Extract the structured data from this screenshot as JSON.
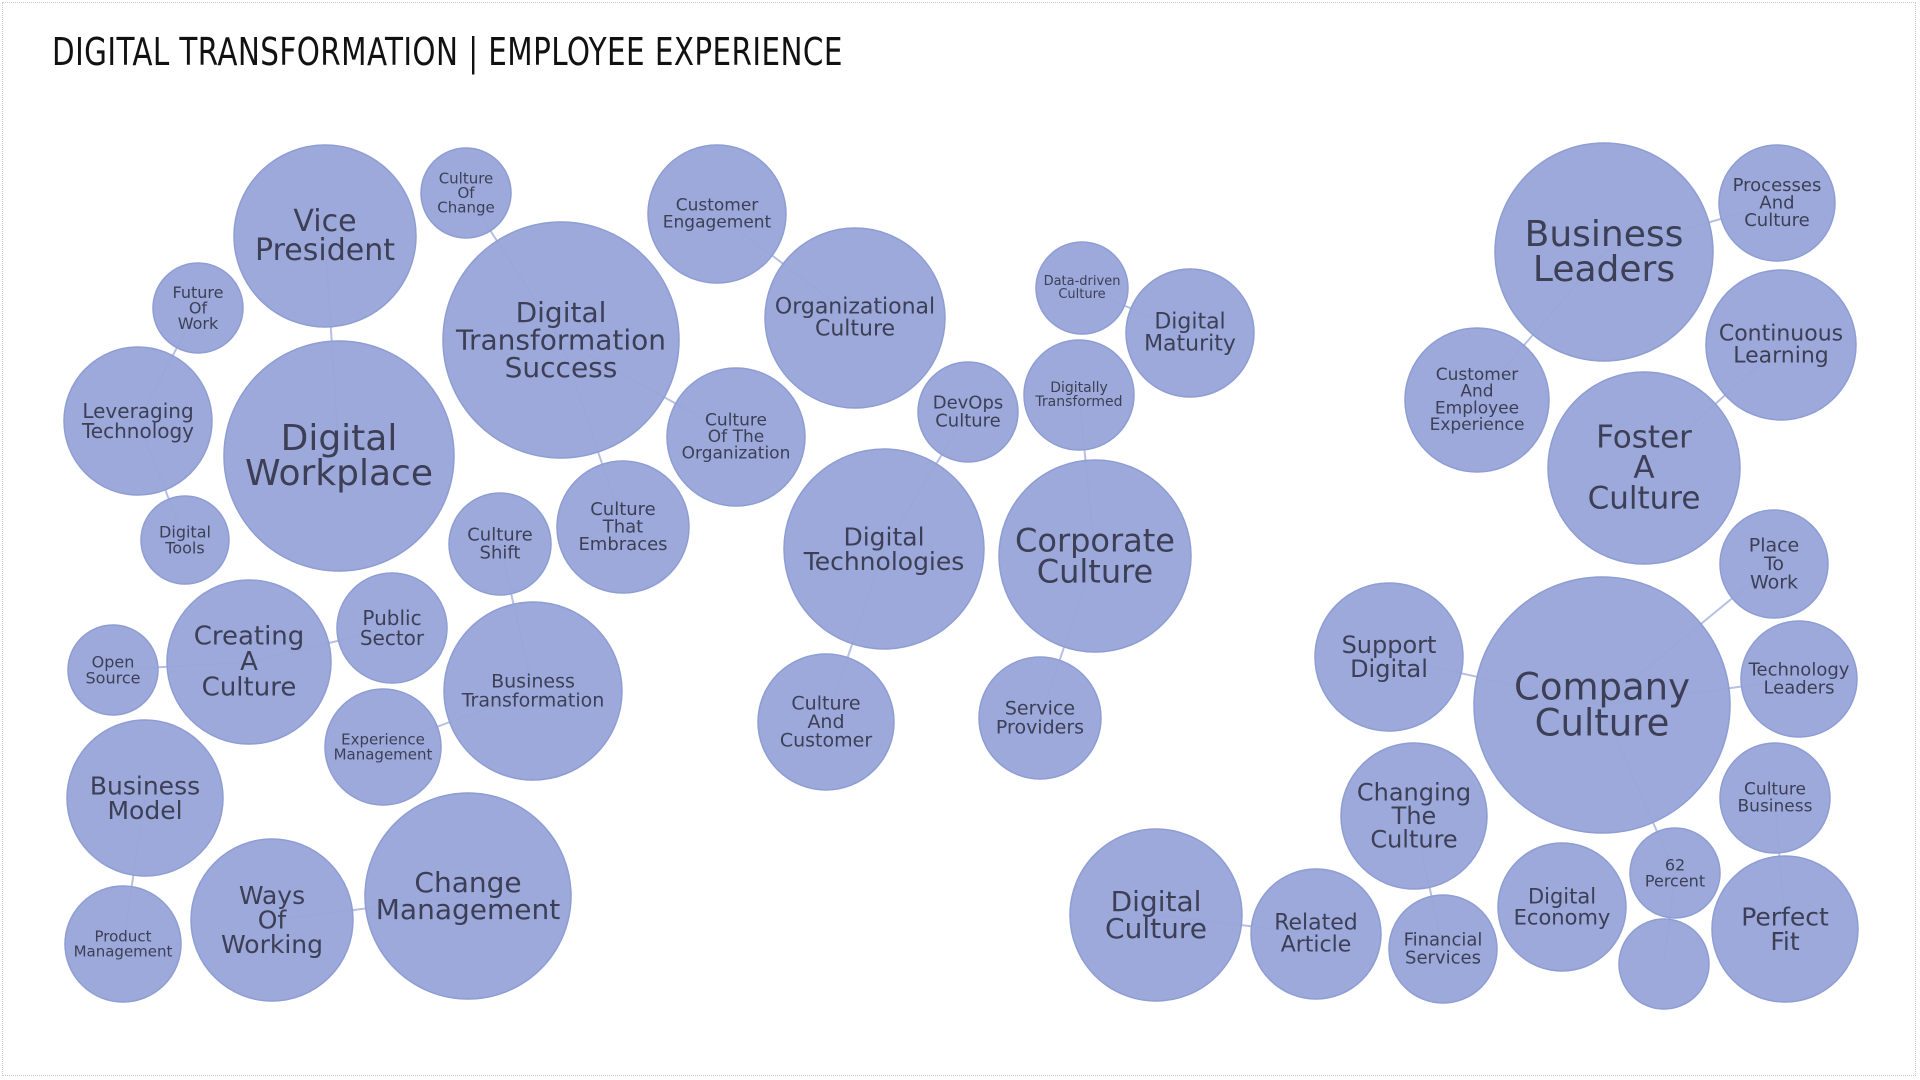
{
  "title": "DIGITAL TRANSFORMATION | EMPLOYEE EXPERIENCE",
  "colors": {
    "bubble": "#98a6d9",
    "bubble_stroke": "#8e9dd3",
    "link": "#b7c0e3",
    "label": "#3c3f55"
  },
  "bubbles": [
    {
      "id": "vice-president",
      "lines": [
        "Vice",
        "President"
      ]
    },
    {
      "id": "culture-of-change",
      "lines": [
        "Culture",
        "Of",
        "Change"
      ]
    },
    {
      "id": "future-of-work",
      "lines": [
        "Future",
        "Of",
        "Work"
      ]
    },
    {
      "id": "digital-workplace",
      "lines": [
        "Digital",
        "Workplace"
      ]
    },
    {
      "id": "leveraging-technology",
      "lines": [
        "Leveraging",
        "Technology"
      ]
    },
    {
      "id": "digital-tools",
      "lines": [
        "Digital",
        "Tools"
      ]
    },
    {
      "id": "digital-transformation-success",
      "lines": [
        "Digital",
        "Transformation",
        "Success"
      ]
    },
    {
      "id": "customer-engagement",
      "lines": [
        "Customer",
        "Engagement"
      ]
    },
    {
      "id": "organizational-culture",
      "lines": [
        "Organizational",
        "Culture"
      ]
    },
    {
      "id": "culture-of-the-organization",
      "lines": [
        "Culture",
        "Of The",
        "Organization"
      ]
    },
    {
      "id": "culture-that-embraces",
      "lines": [
        "Culture",
        "That",
        "Embraces"
      ]
    },
    {
      "id": "culture-shift",
      "lines": [
        "Culture",
        "Shift"
      ]
    },
    {
      "id": "business-transformation",
      "lines": [
        "Business",
        "Transformation"
      ]
    },
    {
      "id": "public-sector",
      "lines": [
        "Public",
        "Sector"
      ]
    },
    {
      "id": "creating-a-culture",
      "lines": [
        "Creating",
        "A",
        "Culture"
      ]
    },
    {
      "id": "open-source",
      "lines": [
        "Open",
        "Source"
      ]
    },
    {
      "id": "experience-management",
      "lines": [
        "Experience",
        "Management"
      ]
    },
    {
      "id": "business-model",
      "lines": [
        "Business",
        "Model"
      ]
    },
    {
      "id": "product-management",
      "lines": [
        "Product",
        "Management"
      ]
    },
    {
      "id": "ways-of-working",
      "lines": [
        "Ways",
        "Of",
        "Working"
      ]
    },
    {
      "id": "change-management",
      "lines": [
        "Change",
        "Management"
      ]
    },
    {
      "id": "devops-culture",
      "lines": [
        "DevOps",
        "Culture"
      ]
    },
    {
      "id": "digital-technologies",
      "lines": [
        "Digital",
        "Technologies"
      ]
    },
    {
      "id": "culture-and-customer",
      "lines": [
        "Culture",
        "And",
        "Customer"
      ]
    },
    {
      "id": "data-driven-culture",
      "lines": [
        "Data-driven",
        "Culture"
      ]
    },
    {
      "id": "digital-maturity",
      "lines": [
        "Digital",
        "Maturity"
      ]
    },
    {
      "id": "digitally-transformed",
      "lines": [
        "Digitally",
        "Transformed"
      ]
    },
    {
      "id": "corporate-culture",
      "lines": [
        "Corporate",
        "Culture"
      ]
    },
    {
      "id": "service-providers",
      "lines": [
        "Service",
        "Providers"
      ]
    },
    {
      "id": "business-leaders",
      "lines": [
        "Business",
        "Leaders"
      ]
    },
    {
      "id": "processes-and-culture",
      "lines": [
        "Processes",
        "And",
        "Culture"
      ]
    },
    {
      "id": "customer-and-employee-experience",
      "lines": [
        "Customer",
        "And",
        "Employee",
        "Experience"
      ]
    },
    {
      "id": "continuous-learning",
      "lines": [
        "Continuous",
        "Learning"
      ]
    },
    {
      "id": "foster-a-culture",
      "lines": [
        "Foster",
        "A",
        "Culture"
      ]
    },
    {
      "id": "place-to-work",
      "lines": [
        "Place",
        "To",
        "Work"
      ]
    },
    {
      "id": "support-digital",
      "lines": [
        "Support",
        "Digital"
      ]
    },
    {
      "id": "company-culture",
      "lines": [
        "Company",
        "Culture"
      ]
    },
    {
      "id": "technology-leaders",
      "lines": [
        "Technology",
        "Leaders"
      ]
    },
    {
      "id": "changing-the-culture",
      "lines": [
        "Changing",
        "The",
        "Culture"
      ]
    },
    {
      "id": "culture-business",
      "lines": [
        "Culture",
        "Business"
      ]
    },
    {
      "id": "digital-culture",
      "lines": [
        "Digital",
        "Culture"
      ]
    },
    {
      "id": "related-article",
      "lines": [
        "Related",
        "Article"
      ]
    },
    {
      "id": "financial-services",
      "lines": [
        "Financial",
        "Services"
      ]
    },
    {
      "id": "digital-economy",
      "lines": [
        "Digital",
        "Economy"
      ]
    },
    {
      "id": "62-percent",
      "lines": [
        "62",
        "Percent"
      ]
    },
    {
      "id": "unlabeled-bubble",
      "lines": []
    },
    {
      "id": "perfect-fit",
      "lines": [
        "Perfect",
        "Fit"
      ]
    }
  ],
  "links": [
    [
      "vice-president",
      "digital-workplace"
    ],
    [
      "culture-of-change",
      "digital-transformation-success"
    ],
    [
      "digital-transformation-success",
      "culture-that-embraces"
    ],
    [
      "digital-transformation-success",
      "culture-of-the-organization"
    ],
    [
      "customer-engagement",
      "organizational-culture"
    ],
    [
      "future-of-work",
      "leveraging-technology"
    ],
    [
      "leveraging-technology",
      "digital-tools"
    ],
    [
      "open-source",
      "creating-a-culture"
    ],
    [
      "creating-a-culture",
      "public-sector"
    ],
    [
      "culture-shift",
      "business-transformation"
    ],
    [
      "experience-management",
      "business-transformation"
    ],
    [
      "business-model",
      "product-management"
    ],
    [
      "ways-of-working",
      "change-management"
    ],
    [
      "devops-culture",
      "digital-technologies"
    ],
    [
      "digital-technologies",
      "culture-and-customer"
    ],
    [
      "data-driven-culture",
      "digital-maturity"
    ],
    [
      "digitally-transformed",
      "corporate-culture"
    ],
    [
      "corporate-culture",
      "service-providers"
    ],
    [
      "business-leaders",
      "processes-and-culture"
    ],
    [
      "business-leaders",
      "customer-and-employee-experience"
    ],
    [
      "continuous-learning",
      "foster-a-culture"
    ],
    [
      "place-to-work",
      "company-culture"
    ],
    [
      "support-digital",
      "company-culture"
    ],
    [
      "company-culture",
      "technology-leaders"
    ],
    [
      "company-culture",
      "62-percent"
    ],
    [
      "changing-the-culture",
      "financial-services"
    ],
    [
      "culture-business",
      "perfect-fit"
    ],
    [
      "digital-culture",
      "related-article"
    ],
    [
      "62-percent",
      "unlabeled-bubble"
    ]
  ]
}
